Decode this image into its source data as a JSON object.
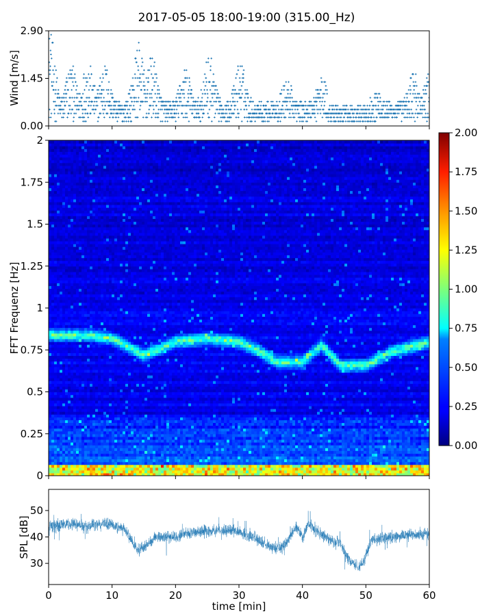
{
  "title": "2017-05-05 18:00-19:00 (315.00_Hz)",
  "chart_data": [
    {
      "type": "scatter",
      "panel": "wind",
      "ylabel": "Wind [m/s]",
      "ylim": [
        0.0,
        2.9
      ],
      "yticks": [
        "0.00",
        "1.45",
        "2.90"
      ],
      "xlim": [
        0,
        60
      ],
      "marker": "plus",
      "color": "#1f77b4",
      "description": "Dense wind-speed samples, mostly between 0.1 and 1.6 m/s with peaks to 2.9 m/s",
      "peaks": [
        {
          "x": 0.2,
          "y": 2.9
        },
        {
          "x": 3.5,
          "y": 1.9
        },
        {
          "x": 6.2,
          "y": 2.0
        },
        {
          "x": 8.8,
          "y": 1.9
        },
        {
          "x": 14.2,
          "y": 2.55
        },
        {
          "x": 16.3,
          "y": 2.1
        },
        {
          "x": 21.5,
          "y": 1.8
        },
        {
          "x": 25.3,
          "y": 2.15
        },
        {
          "x": 30.2,
          "y": 1.95
        },
        {
          "x": 37.5,
          "y": 1.4
        },
        {
          "x": 43.0,
          "y": 1.5
        },
        {
          "x": 51.5,
          "y": 1.2
        },
        {
          "x": 57.5,
          "y": 1.7
        },
        {
          "x": 60.0,
          "y": 1.6
        }
      ]
    },
    {
      "type": "heatmap",
      "panel": "spectrogram",
      "ylabel": "FFT Frequenz [Hz]",
      "ylim": [
        0,
        2
      ],
      "yticks": [
        "0",
        "0.25",
        "0.5",
        "0.75",
        "1",
        "1.25",
        "1.5",
        "1.75",
        "2"
      ],
      "xlim": [
        0,
        60
      ],
      "colormap": "jet",
      "colorbar": {
        "min": 0.0,
        "max": 2.0,
        "ticks": [
          "0.00",
          "0.25",
          "0.50",
          "0.75",
          "1.00",
          "1.25",
          "1.50",
          "1.75",
          "2.00"
        ]
      },
      "ridge": [
        {
          "x": 0,
          "y": 0.84
        },
        {
          "x": 6,
          "y": 0.84
        },
        {
          "x": 10,
          "y": 0.82
        },
        {
          "x": 15,
          "y": 0.72
        },
        {
          "x": 20,
          "y": 0.8
        },
        {
          "x": 25,
          "y": 0.82
        },
        {
          "x": 30,
          "y": 0.8
        },
        {
          "x": 33,
          "y": 0.75
        },
        {
          "x": 36,
          "y": 0.68
        },
        {
          "x": 40,
          "y": 0.68
        },
        {
          "x": 43,
          "y": 0.78
        },
        {
          "x": 46,
          "y": 0.66
        },
        {
          "x": 50,
          "y": 0.66
        },
        {
          "x": 54,
          "y": 0.74
        },
        {
          "x": 60,
          "y": 0.8
        }
      ]
    },
    {
      "type": "line",
      "panel": "spl",
      "xlabel": "time [min]",
      "ylabel": "SPL [dB]",
      "ylim": [
        22,
        58
      ],
      "yticks": [
        "30",
        "40",
        "50"
      ],
      "xlim": [
        0,
        60
      ],
      "xticks": [
        "0",
        "10",
        "20",
        "30",
        "40",
        "50",
        "60"
      ],
      "color": "#1f77b4",
      "trend": [
        {
          "x": 0,
          "y": 44
        },
        {
          "x": 3,
          "y": 45
        },
        {
          "x": 6,
          "y": 44
        },
        {
          "x": 9,
          "y": 45
        },
        {
          "x": 12,
          "y": 43
        },
        {
          "x": 14,
          "y": 35
        },
        {
          "x": 15,
          "y": 36
        },
        {
          "x": 17,
          "y": 40
        },
        {
          "x": 20,
          "y": 40
        },
        {
          "x": 23,
          "y": 42
        },
        {
          "x": 26,
          "y": 42
        },
        {
          "x": 29,
          "y": 43
        },
        {
          "x": 31,
          "y": 41
        },
        {
          "x": 33,
          "y": 39
        },
        {
          "x": 35,
          "y": 36
        },
        {
          "x": 37,
          "y": 36
        },
        {
          "x": 39,
          "y": 44
        },
        {
          "x": 40,
          "y": 40
        },
        {
          "x": 41,
          "y": 45
        },
        {
          "x": 43,
          "y": 41
        },
        {
          "x": 45,
          "y": 38
        },
        {
          "x": 46,
          "y": 38
        },
        {
          "x": 47,
          "y": 32
        },
        {
          "x": 49,
          "y": 28
        },
        {
          "x": 50,
          "y": 33
        },
        {
          "x": 51,
          "y": 39
        },
        {
          "x": 54,
          "y": 40
        },
        {
          "x": 57,
          "y": 41
        },
        {
          "x": 60,
          "y": 41
        }
      ]
    }
  ]
}
